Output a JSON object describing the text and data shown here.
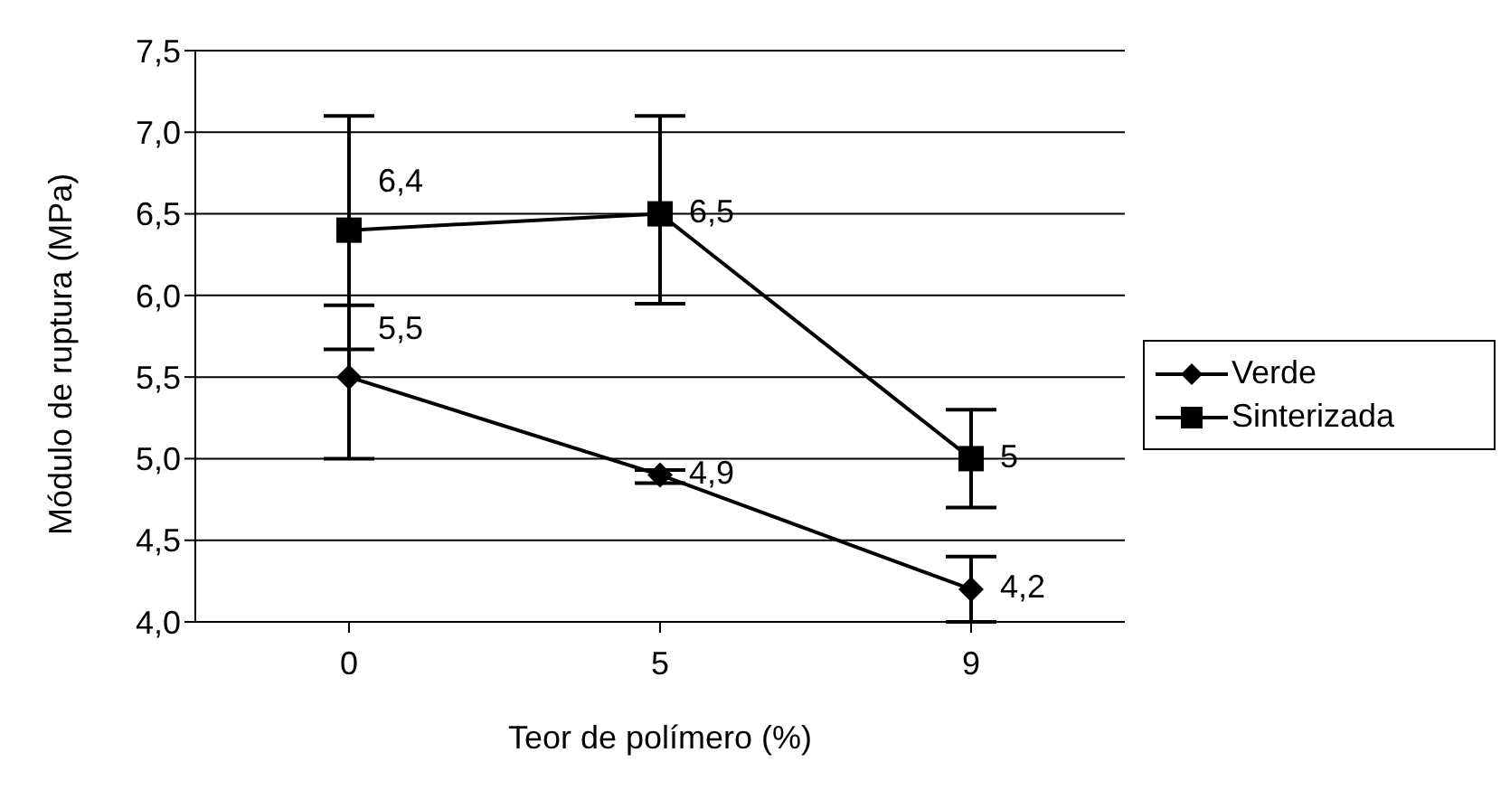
{
  "chart_data": {
    "type": "line",
    "xlabel": "Teor de polímero (%)",
    "ylabel": "Módulo de ruptura (MPa)",
    "categories": [
      "0",
      "5",
      "9"
    ],
    "series": [
      {
        "name": "Verde",
        "color": "#000000",
        "marker": "diamond",
        "values": [
          5.5,
          4.9,
          4.2
        ],
        "value_labels": [
          "5,5",
          "4,9",
          "4,2"
        ],
        "errors": [
          [
            5.0,
            5.94
          ],
          [
            4.85,
            4.93
          ],
          [
            4.0,
            4.4
          ]
        ]
      },
      {
        "name": "Sinterizada",
        "color": "#000000",
        "marker": "square",
        "values": [
          6.4,
          6.5,
          5.0
        ],
        "value_labels": [
          "6,4",
          "6,5",
          "5"
        ],
        "errors": [
          [
            5.67,
            7.1
          ],
          [
            5.95,
            7.1
          ],
          [
            4.7,
            5.3
          ]
        ]
      }
    ],
    "ylim": [
      4.0,
      7.5
    ],
    "yticks": [
      {
        "value": 4.0,
        "label": "4,0"
      },
      {
        "value": 4.5,
        "label": "4,5"
      },
      {
        "value": 5.0,
        "label": "5,0"
      },
      {
        "value": 5.5,
        "label": "5,5"
      },
      {
        "value": 6.0,
        "label": "6,0"
      },
      {
        "value": 6.5,
        "label": "6,5"
      },
      {
        "value": 7.0,
        "label": "7,0"
      },
      {
        "value": 7.5,
        "label": "7,5"
      }
    ],
    "grid": "y",
    "legend": "right",
    "line_style": "solid"
  }
}
